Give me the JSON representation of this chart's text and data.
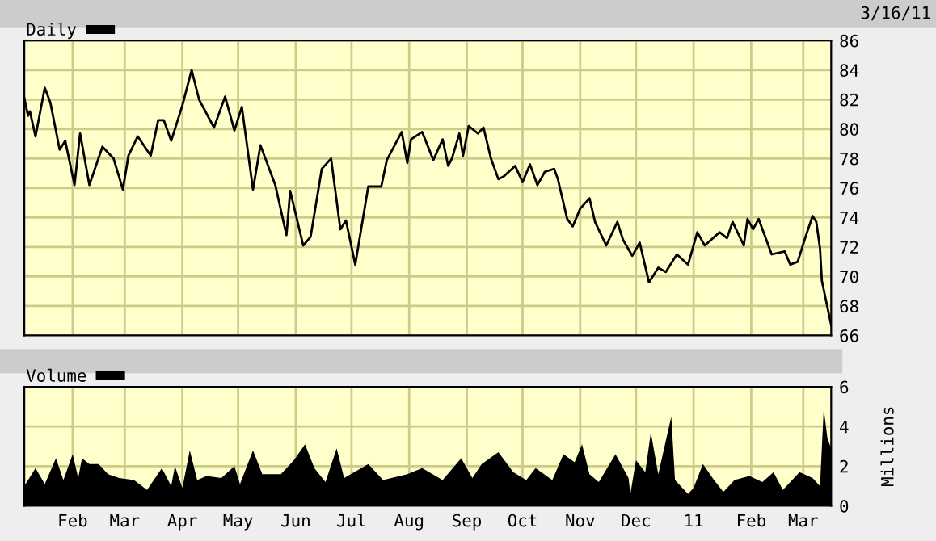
{
  "chart_data": [
    {
      "type": "line",
      "legend": "top left",
      "grid": true,
      "tick_labels": "y",
      "annotations": [
        "3/16/11"
      ],
      "xlim": [
        "2010-01-06",
        "2011-03-16"
      ],
      "xticks": [
        {
          "value": "2010-02-01",
          "label": null
        },
        {
          "value": "2010-03-01",
          "label": null
        },
        {
          "value": "2010-04-01",
          "label": null
        },
        {
          "value": "2010-05-01",
          "label": null
        },
        {
          "value": "2010-06-01",
          "label": null
        },
        {
          "value": "2010-07-01",
          "label": null
        },
        {
          "value": "2010-08-01",
          "label": null
        },
        {
          "value": "2010-09-01",
          "label": null
        },
        {
          "value": "2010-10-01",
          "label": null
        },
        {
          "value": "2010-11-01",
          "label": null
        },
        {
          "value": "2010-12-01",
          "label": null
        },
        {
          "value": "2011-01-01",
          "label": null
        },
        {
          "value": "2011-02-01",
          "label": null
        },
        {
          "value": "2011-03-01",
          "label": null
        }
      ],
      "ylim": [
        66,
        86
      ],
      "yticks": [
        66,
        68,
        70,
        72,
        74,
        76,
        78,
        80,
        82,
        84,
        86
      ],
      "x": [
        "2010-01-06",
        "2010-01-08",
        "2010-01-09",
        "2010-01-12",
        "2010-01-17",
        "2010-01-20",
        "2010-01-25",
        "2010-01-28",
        "2010-02-02",
        "2010-02-05",
        "2010-02-10",
        "2010-02-17",
        "2010-02-23",
        "2010-02-28",
        "2010-03-03",
        "2010-03-08",
        "2010-03-15",
        "2010-03-19",
        "2010-03-22",
        "2010-03-26",
        "2010-04-01",
        "2010-04-06",
        "2010-04-10",
        "2010-04-18",
        "2010-04-24",
        "2010-04-29",
        "2010-05-03",
        "2010-05-09",
        "2010-05-13",
        "2010-05-21",
        "2010-05-27",
        "2010-05-29",
        "2010-06-05",
        "2010-06-09",
        "2010-06-15",
        "2010-06-20",
        "2010-06-25",
        "2010-06-28",
        "2010-07-03",
        "2010-07-10",
        "2010-07-17",
        "2010-07-20",
        "2010-07-28",
        "2010-07-31",
        "2010-08-02",
        "2010-08-08",
        "2010-08-14",
        "2010-08-19",
        "2010-08-22",
        "2010-08-24",
        "2010-08-28",
        "2010-08-30",
        "2010-09-02",
        "2010-09-07",
        "2010-09-10",
        "2010-09-14",
        "2010-09-18",
        "2010-09-21",
        "2010-09-27",
        "2010-10-01",
        "2010-10-05",
        "2010-10-09",
        "2010-10-13",
        "2010-10-18",
        "2010-10-20",
        "2010-10-25",
        "2010-10-28",
        "2010-11-01",
        "2010-11-06",
        "2010-11-09",
        "2010-11-15",
        "2010-11-21",
        "2010-11-24",
        "2010-11-29",
        "2010-12-03",
        "2010-12-08",
        "2010-12-13",
        "2010-12-17",
        "2010-12-23",
        "2010-12-29",
        "2011-01-03",
        "2011-01-07",
        "2011-01-15",
        "2011-01-19",
        "2011-01-22",
        "2011-01-28",
        "2011-01-30",
        "2011-02-02",
        "2011-02-05",
        "2011-02-12",
        "2011-02-19",
        "2011-02-22",
        "2011-02-26",
        "2011-03-02",
        "2011-03-06",
        "2011-03-08",
        "2011-03-10",
        "2011-03-11",
        "2011-03-16"
      ],
      "series": [
        {
          "name": "Daily",
          "color": "#000000",
          "values": [
            82.1,
            80.9,
            81.2,
            79.5,
            82.8,
            81.8,
            78.6,
            79.2,
            76.2,
            79.7,
            76.2,
            78.8,
            78.0,
            75.9,
            78.2,
            79.5,
            78.2,
            80.6,
            80.6,
            79.2,
            81.6,
            84.0,
            82.0,
            80.1,
            82.2,
            79.9,
            81.5,
            75.9,
            78.9,
            76.2,
            72.8,
            75.8,
            72.1,
            72.7,
            77.3,
            78.0,
            73.2,
            73.8,
            70.8,
            76.1,
            76.1,
            77.9,
            79.8,
            77.7,
            79.3,
            79.8,
            77.9,
            79.3,
            77.5,
            78.0,
            79.7,
            78.2,
            80.2,
            79.7,
            80.1,
            78.0,
            76.6,
            76.8,
            77.5,
            76.4,
            77.6,
            76.2,
            77.1,
            77.3,
            76.6,
            73.9,
            73.4,
            74.6,
            75.3,
            73.7,
            72.1,
            73.7,
            72.5,
            71.4,
            72.3,
            69.6,
            70.6,
            70.3,
            71.5,
            70.8,
            73.0,
            72.1,
            73.0,
            72.6,
            73.7,
            72.1,
            73.9,
            73.2,
            73.9,
            71.5,
            71.7,
            70.8,
            71.0,
            72.6,
            74.1,
            73.7,
            71.9,
            69.7,
            66.7
          ]
        }
      ]
    },
    {
      "type": "area",
      "legend": "top left",
      "grid": true,
      "ylabel": "Millions",
      "xlim": [
        "2010-01-06",
        "2011-03-16"
      ],
      "xticks": [
        {
          "value": "2010-02-01",
          "label": "Feb"
        },
        {
          "value": "2010-03-01",
          "label": "Mar"
        },
        {
          "value": "2010-04-01",
          "label": "Apr"
        },
        {
          "value": "2010-05-01",
          "label": "May"
        },
        {
          "value": "2010-06-01",
          "label": "Jun"
        },
        {
          "value": "2010-07-01",
          "label": "Jul"
        },
        {
          "value": "2010-08-01",
          "label": "Aug"
        },
        {
          "value": "2010-09-01",
          "label": "Sep"
        },
        {
          "value": "2010-10-01",
          "label": "Oct"
        },
        {
          "value": "2010-11-01",
          "label": "Nov"
        },
        {
          "value": "2010-12-01",
          "label": "Dec"
        },
        {
          "value": "2011-01-01",
          "label": "11"
        },
        {
          "value": "2011-02-01",
          "label": "Feb"
        },
        {
          "value": "2011-03-01",
          "label": "Mar"
        }
      ],
      "ylim": [
        0,
        6
      ],
      "yticks": [
        0,
        2,
        4,
        6
      ],
      "x": [
        "2010-01-06",
        "2010-01-12",
        "2010-01-17",
        "2010-01-23",
        "2010-01-27",
        "2010-02-01",
        "2010-02-04",
        "2010-02-06",
        "2010-02-10",
        "2010-02-15",
        "2010-02-20",
        "2010-02-26",
        "2010-03-06",
        "2010-03-13",
        "2010-03-21",
        "2010-03-26",
        "2010-03-28",
        "2010-04-01",
        "2010-04-05",
        "2010-04-09",
        "2010-04-14",
        "2010-04-22",
        "2010-04-29",
        "2010-05-02",
        "2010-05-09",
        "2010-05-14",
        "2010-05-24",
        "2010-05-31",
        "2010-06-06",
        "2010-06-11",
        "2010-06-17",
        "2010-06-23",
        "2010-06-27",
        "2010-07-10",
        "2010-07-18",
        "2010-07-31",
        "2010-08-08",
        "2010-08-19",
        "2010-08-29",
        "2010-09-04",
        "2010-09-09",
        "2010-09-18",
        "2010-09-26",
        "2010-10-03",
        "2010-10-08",
        "2010-10-17",
        "2010-10-23",
        "2010-10-29",
        "2010-11-02",
        "2010-11-06",
        "2010-11-11",
        "2010-11-20",
        "2010-11-27",
        "2010-11-28",
        "2010-12-01",
        "2010-12-06",
        "2010-12-09",
        "2010-12-13",
        "2010-12-20",
        "2010-12-22",
        "2010-12-29",
        "2011-01-01",
        "2011-01-06",
        "2011-01-12",
        "2011-01-17",
        "2011-01-23",
        "2011-01-31",
        "2011-02-07",
        "2011-02-13",
        "2011-02-18",
        "2011-02-27",
        "2011-03-06",
        "2011-03-10",
        "2011-03-12",
        "2011-03-14",
        "2011-03-16"
      ],
      "series": [
        {
          "name": "Volume",
          "color": "#000000",
          "values": [
            1.0,
            1.9,
            1.1,
            2.4,
            1.3,
            2.6,
            1.4,
            2.4,
            2.1,
            2.1,
            1.6,
            1.4,
            1.3,
            0.8,
            1.9,
            1.0,
            2.0,
            0.9,
            2.8,
            1.3,
            1.5,
            1.4,
            2.0,
            1.1,
            2.8,
            1.6,
            1.6,
            2.3,
            3.1,
            1.9,
            1.2,
            2.9,
            1.4,
            2.1,
            1.3,
            1.6,
            1.9,
            1.3,
            2.4,
            1.4,
            2.1,
            2.7,
            1.7,
            1.3,
            1.9,
            1.3,
            2.6,
            2.2,
            3.1,
            1.6,
            1.2,
            2.6,
            1.4,
            0.6,
            2.3,
            1.7,
            3.7,
            1.6,
            4.5,
            1.3,
            0.6,
            0.9,
            2.1,
            1.3,
            0.7,
            1.3,
            1.5,
            1.2,
            1.7,
            0.8,
            1.7,
            1.4,
            1.0,
            4.9,
            3.4,
            2.9
          ]
        }
      ]
    }
  ]
}
